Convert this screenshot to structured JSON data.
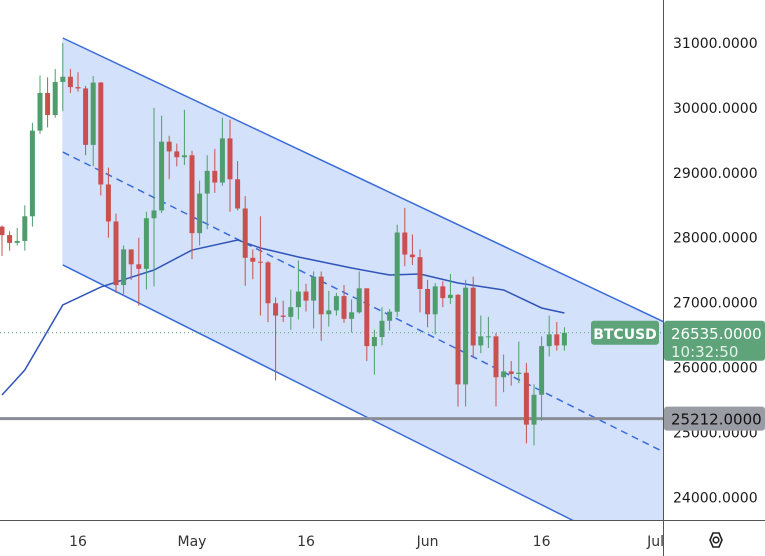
{
  "chart_data": {
    "type": "candlestick",
    "symbol": "BTCUSD",
    "last_price": "26535.0000",
    "countdown": "10:32:50",
    "horizontal_level": {
      "value": 25212,
      "label": "25212.0000"
    },
    "ylim": [
      23650,
      31350
    ],
    "y_ticks": [
      "31000.0000",
      "30000.0000",
      "29000.0000",
      "28000.0000",
      "27000.0000",
      "26000.0000",
      "25000.0000",
      "24000.0000"
    ],
    "x_ticks": [
      {
        "date": "2023-04-16",
        "label": "16"
      },
      {
        "date": "2023-05-01",
        "label": "May"
      },
      {
        "date": "2023-05-16",
        "label": "16"
      },
      {
        "date": "2023-06-01",
        "label": "Jun"
      },
      {
        "date": "2023-06-16",
        "label": "16"
      },
      {
        "date": "2023-07-01",
        "label": "Jul"
      }
    ],
    "x_range": [
      "2023-04-06",
      "2023-07-02"
    ],
    "colors": {
      "up": "#4f9d6c",
      "down": "#c9504f",
      "channel_line": "#3a6bd8",
      "channel_fill": "#d3e1fb",
      "ma": "#2f55b8",
      "level": "#8a8d96",
      "last_label": "#5ea37a"
    },
    "channel": {
      "upper": [
        [
          "2023-04-14",
          31077
        ],
        [
          "2023-07-01",
          26763
        ]
      ],
      "middle": [
        [
          "2023-04-14",
          29320
        ],
        [
          "2023-07-01",
          24760
        ]
      ],
      "lower": [
        [
          "2023-04-14",
          27580
        ],
        [
          "2023-06-20",
          23650
        ]
      ]
    },
    "moving_average": [
      [
        "2023-04-06",
        25576
      ],
      [
        "2023-04-09",
        25961
      ],
      [
        "2023-04-14",
        26963
      ],
      [
        "2023-04-19",
        27240
      ],
      [
        "2023-04-26",
        27502
      ],
      [
        "2023-05-01",
        27810
      ],
      [
        "2023-05-07",
        27965
      ],
      [
        "2023-05-10",
        27841
      ],
      [
        "2023-05-15",
        27703
      ],
      [
        "2023-05-22",
        27533
      ],
      [
        "2023-05-27",
        27425
      ],
      [
        "2023-05-31",
        27441
      ],
      [
        "2023-06-05",
        27302
      ],
      [
        "2023-06-11",
        27194
      ],
      [
        "2023-06-16",
        26917
      ],
      [
        "2023-06-19",
        26840
      ]
    ],
    "candles_columns": [
      "date",
      "open",
      "high",
      "low",
      "close"
    ],
    "candles": [
      [
        "2023-04-06",
        28170,
        28190,
        27720,
        28040
      ],
      [
        "2023-04-07",
        28040,
        28100,
        27800,
        27920
      ],
      [
        "2023-04-08",
        27920,
        28150,
        27880,
        27950
      ],
      [
        "2023-04-09",
        27950,
        28500,
        27800,
        28330
      ],
      [
        "2023-04-10",
        28330,
        29770,
        28170,
        29650
      ],
      [
        "2023-04-11",
        29650,
        30500,
        29600,
        30230
      ],
      [
        "2023-04-12",
        30230,
        30470,
        29700,
        29890
      ],
      [
        "2023-04-13",
        29890,
        30600,
        29850,
        30400
      ],
      [
        "2023-04-14",
        30400,
        31000,
        29950,
        30480
      ],
      [
        "2023-04-15",
        30480,
        30600,
        30230,
        30320
      ],
      [
        "2023-04-16",
        30320,
        30550,
        30250,
        30300
      ],
      [
        "2023-04-17",
        30300,
        30340,
        29270,
        29430
      ],
      [
        "2023-04-18",
        29430,
        30490,
        29100,
        30390
      ],
      [
        "2023-04-19",
        30390,
        30400,
        28650,
        28820
      ],
      [
        "2023-04-20",
        28820,
        29080,
        28000,
        28250
      ],
      [
        "2023-04-21",
        28250,
        28370,
        27150,
        27270
      ],
      [
        "2023-04-22",
        27270,
        27880,
        27130,
        27820
      ],
      [
        "2023-04-23",
        27820,
        27820,
        27350,
        27590
      ],
      [
        "2023-04-24",
        27590,
        28000,
        26950,
        27520
      ],
      [
        "2023-04-25",
        27520,
        28400,
        27200,
        28300
      ],
      [
        "2023-04-26",
        28300,
        30000,
        27250,
        28420
      ],
      [
        "2023-04-27",
        28420,
        29880,
        28380,
        29480
      ],
      [
        "2023-04-28",
        29480,
        29570,
        28900,
        29330
      ],
      [
        "2023-04-29",
        29330,
        29450,
        29100,
        29240
      ],
      [
        "2023-04-30",
        29240,
        29970,
        29120,
        29270
      ],
      [
        "2023-05-01",
        29270,
        29340,
        27670,
        28070
      ],
      [
        "2023-05-02",
        28070,
        28880,
        27880,
        28680
      ],
      [
        "2023-05-03",
        28680,
        29270,
        28130,
        29030
      ],
      [
        "2023-05-04",
        29030,
        29370,
        28690,
        28850
      ],
      [
        "2023-05-05",
        28850,
        29850,
        28800,
        29530
      ],
      [
        "2023-05-06",
        29530,
        29820,
        28400,
        28900
      ],
      [
        "2023-05-07",
        28900,
        29180,
        28420,
        28450
      ],
      [
        "2023-05-08",
        28450,
        28640,
        27260,
        27690
      ],
      [
        "2023-05-09",
        27690,
        27820,
        27360,
        27630
      ],
      [
        "2023-05-10",
        27630,
        28330,
        26800,
        27620
      ],
      [
        "2023-05-11",
        27620,
        27640,
        26700,
        26990
      ],
      [
        "2023-05-12",
        26990,
        27080,
        25800,
        26800
      ],
      [
        "2023-05-13",
        26800,
        27030,
        26700,
        26780
      ],
      [
        "2023-05-14",
        26780,
        27200,
        26580,
        26930
      ],
      [
        "2023-05-15",
        26930,
        27650,
        26740,
        27170
      ],
      [
        "2023-05-16",
        27170,
        27290,
        26860,
        27030
      ],
      [
        "2023-05-17",
        27030,
        27480,
        26600,
        27400
      ],
      [
        "2023-05-18",
        27400,
        27480,
        26410,
        26820
      ],
      [
        "2023-05-19",
        26820,
        27180,
        26630,
        26880
      ],
      [
        "2023-05-20",
        26880,
        27150,
        26800,
        27100
      ],
      [
        "2023-05-21",
        27100,
        27270,
        26690,
        26750
      ],
      [
        "2023-05-22",
        26750,
        27050,
        26540,
        26850
      ],
      [
        "2023-05-23",
        26850,
        27480,
        26830,
        27220
      ],
      [
        "2023-05-24",
        27220,
        27220,
        26100,
        26330
      ],
      [
        "2023-05-25",
        26330,
        26580,
        25890,
        26470
      ],
      [
        "2023-05-26",
        26470,
        26930,
        26340,
        26720
      ],
      [
        "2023-05-27",
        26720,
        26900,
        26570,
        26860
      ],
      [
        "2023-05-28",
        26860,
        28200,
        26780,
        28080
      ],
      [
        "2023-05-29",
        28080,
        28460,
        27560,
        27740
      ],
      [
        "2023-05-30",
        27740,
        28050,
        27580,
        27700
      ],
      [
        "2023-05-31",
        27700,
        27820,
        26850,
        27210
      ],
      [
        "2023-06-01",
        27210,
        27350,
        26620,
        26820
      ],
      [
        "2023-06-02",
        26820,
        27300,
        26510,
        27250
      ],
      [
        "2023-06-03",
        27250,
        27330,
        26930,
        27070
      ],
      [
        "2023-06-04",
        27070,
        27440,
        26980,
        27120
      ],
      [
        "2023-06-05",
        27120,
        27130,
        25400,
        25740
      ],
      [
        "2023-06-06",
        25740,
        27350,
        25400,
        27230
      ],
      [
        "2023-06-07",
        27230,
        27400,
        26150,
        26340
      ],
      [
        "2023-06-08",
        26340,
        26800,
        26220,
        26480
      ],
      [
        "2023-06-09",
        26480,
        26780,
        26300,
        26480
      ],
      [
        "2023-06-10",
        26480,
        26530,
        25400,
        25850
      ],
      [
        "2023-06-11",
        25850,
        26200,
        25620,
        25940
      ],
      [
        "2023-06-12",
        25940,
        26100,
        25720,
        25900
      ],
      [
        "2023-06-13",
        25900,
        26400,
        25760,
        25920
      ],
      [
        "2023-06-14",
        25920,
        26070,
        24830,
        25120
      ],
      [
        "2023-06-15",
        25120,
        25740,
        24800,
        25580
      ],
      [
        "2023-06-16",
        25580,
        26480,
        25180,
        26330
      ],
      [
        "2023-06-17",
        26330,
        26800,
        26170,
        26510
      ],
      [
        "2023-06-18",
        26510,
        26700,
        26260,
        26340
      ],
      [
        "2023-06-19",
        26340,
        26620,
        26260,
        26535
      ]
    ]
  },
  "settings_icon": "gear-hexagon-icon"
}
